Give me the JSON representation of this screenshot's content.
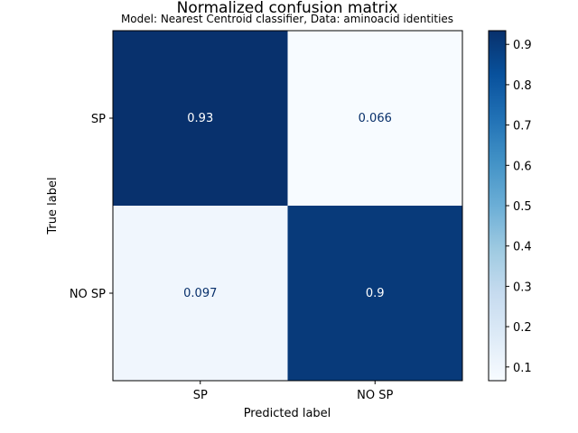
{
  "chart_data": {
    "type": "heatmap",
    "title": "Normalized confusion matrix",
    "subtitle": "Model: Nearest Centroid classifier, Data: aminoacid identities",
    "xlabel": "Predicted label",
    "ylabel": "True label",
    "row_labels": [
      "SP",
      "NO SP"
    ],
    "col_labels": [
      "SP",
      "NO SP"
    ],
    "values": [
      [
        0.93,
        0.066
      ],
      [
        0.097,
        0.9
      ]
    ],
    "cell_labels": [
      [
        "0.93",
        "0.066"
      ],
      [
        "0.097",
        "0.9"
      ]
    ],
    "colormap": "Blues",
    "colorbar": {
      "range": [
        0.066,
        0.934
      ],
      "ticks": [
        "0.1",
        "0.2",
        "0.3",
        "0.4",
        "0.5",
        "0.6",
        "0.7",
        "0.8",
        "0.9"
      ]
    },
    "grid": false
  }
}
